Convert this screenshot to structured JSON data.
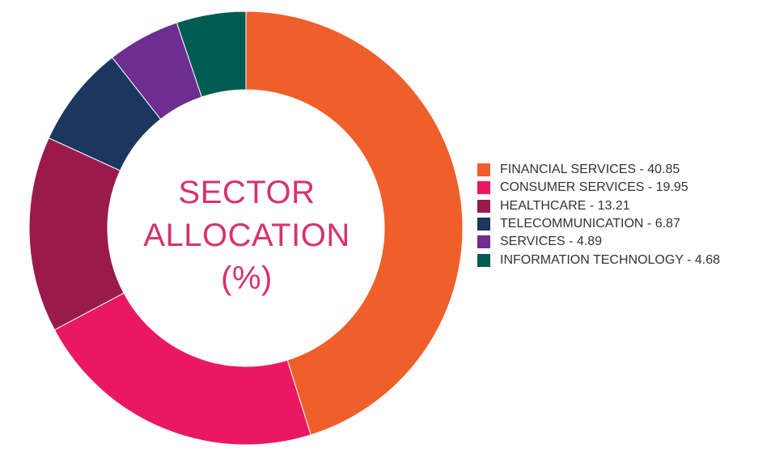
{
  "chart_data": {
    "type": "pie",
    "variant": "donut",
    "title_lines": [
      "SECTOR",
      "ALLOCATION",
      "(%)"
    ],
    "start_angle_deg": 0,
    "direction": "clockwise",
    "legend_position": "right",
    "slices": [
      {
        "label": "FINANCIAL SERVICES",
        "value": 40.85,
        "legend_text": "FINANCIAL SERVICES - 40.85",
        "color": "#f05f29"
      },
      {
        "label": "CONSUMER SERVICES",
        "value": 19.95,
        "legend_text": "CONSUMER SERVICES - 19.95",
        "color": "#ea1863"
      },
      {
        "label": "HEALTHCARE",
        "value": 13.21,
        "legend_text": "HEALTHCARE - 13.21",
        "color": "#9b1a4d"
      },
      {
        "label": "TELECOMMUNICATION",
        "value": 6.87,
        "legend_text": "TELECOMMUNICATION - 6.87",
        "color": "#1b365f"
      },
      {
        "label": "SERVICES",
        "value": 4.89,
        "legend_text": "SERVICES - 4.89",
        "color": "#6e2d91"
      },
      {
        "label": "INFORMATION TECHNOLOGY",
        "value": 4.68,
        "legend_text": "INFORMATION TECHNOLOGY - 4.68",
        "color": "#005c53"
      }
    ]
  }
}
